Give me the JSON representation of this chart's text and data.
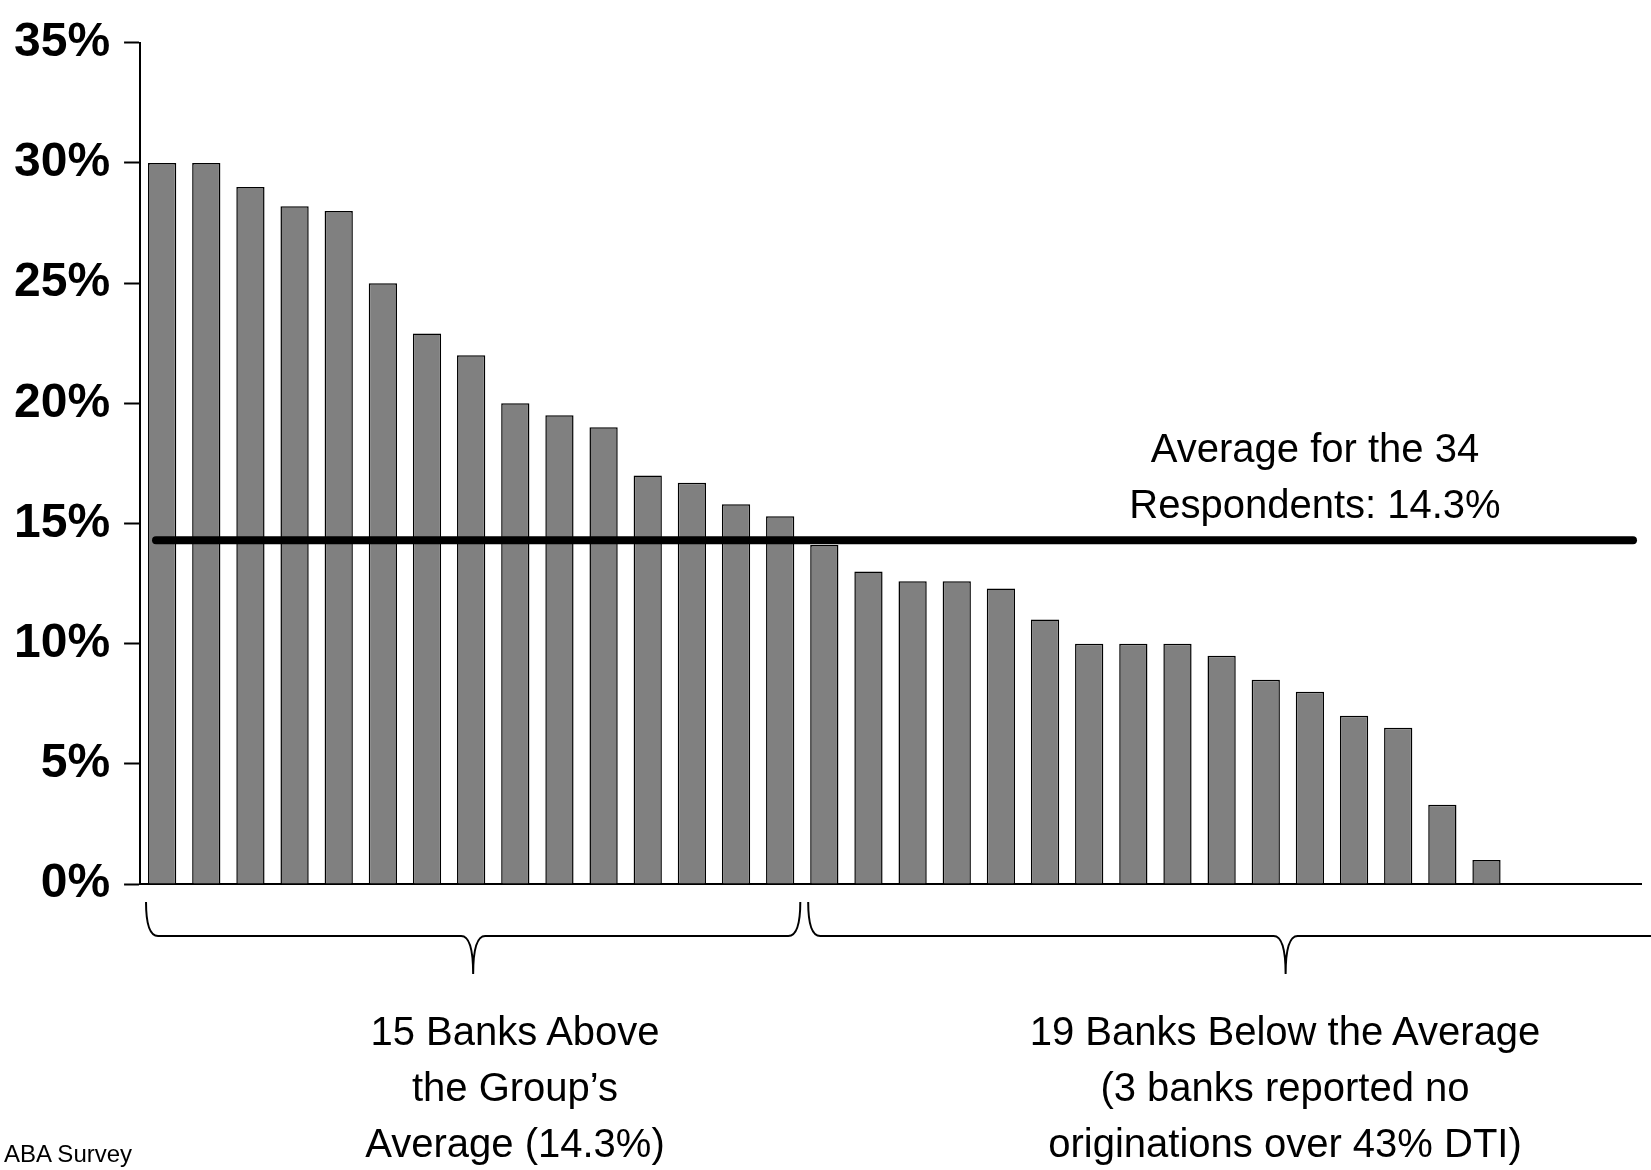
{
  "chart_data": {
    "type": "bar",
    "categories": [
      null,
      null,
      null,
      null,
      null,
      null,
      null,
      null,
      null,
      null,
      null,
      null,
      null,
      null,
      null,
      null,
      null,
      null,
      null,
      null,
      null,
      null,
      null,
      null,
      null,
      null,
      null,
      null,
      null,
      null,
      null,
      null,
      null,
      null
    ],
    "values": [
      30,
      30,
      29,
      28.2,
      28,
      25,
      22.9,
      22,
      20,
      19.5,
      19,
      17,
      16.7,
      15.8,
      15.3,
      14.1,
      13,
      12.6,
      12.6,
      12.3,
      11,
      10,
      10,
      10,
      9.5,
      8.5,
      8,
      7,
      6.5,
      3.3,
      1,
      0,
      0,
      0
    ],
    "color": "#808080",
    "ylim": [
      0,
      35
    ],
    "yticks": [
      {
        "value": 0,
        "label": "0%"
      },
      {
        "value": 5,
        "label": "5%"
      },
      {
        "value": 10,
        "label": "10%"
      },
      {
        "value": 15,
        "label": "15%"
      },
      {
        "value": 20,
        "label": "20%"
      },
      {
        "value": 25,
        "label": "25%"
      },
      {
        "value": 30,
        "label": "30%"
      },
      {
        "value": 35,
        "label": "35%"
      }
    ],
    "grid": false,
    "legend": false,
    "tick_labels": "y",
    "ref_lines": [
      {
        "axis": "y",
        "value": 14.3,
        "label": "Average for the 34\nRespondents: 14.3%",
        "color": "#000000"
      }
    ],
    "annotations": [
      "15 Banks Above\nthe Group’s\nAverage (14.3%)",
      "19 Banks Below the Average\n(3 banks reported no\noriginations over 43% DTI)",
      "ABA Survey"
    ]
  }
}
